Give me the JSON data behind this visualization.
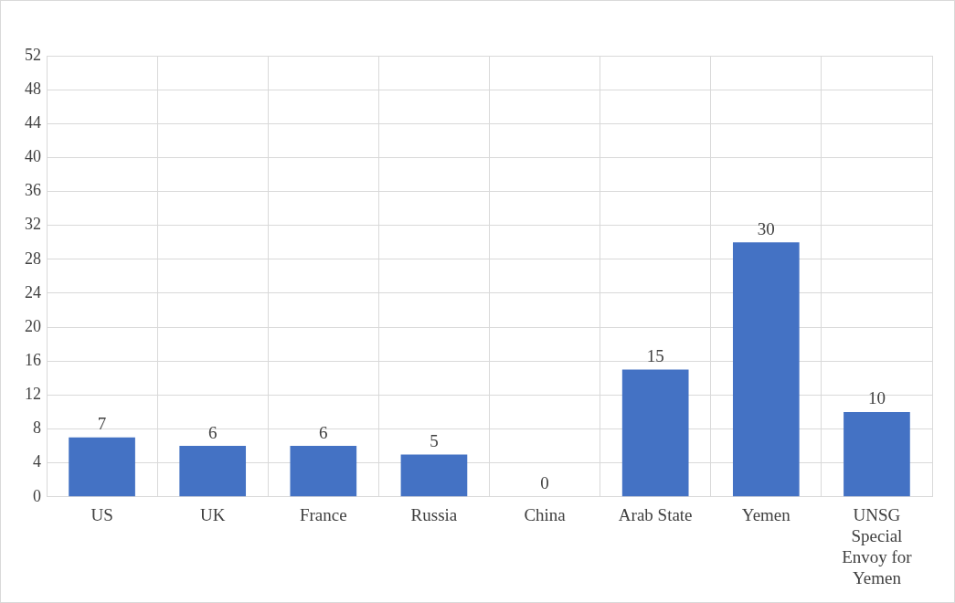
{
  "chart_data": {
    "type": "bar",
    "categories": [
      "US",
      "UK",
      "France",
      "Russia",
      "China",
      "Arab State",
      "Yemen",
      "UNSG Special Envoy for Yemen"
    ],
    "values": [
      7,
      6,
      6,
      5,
      0,
      15,
      30,
      10
    ],
    "color": "#4472c4",
    "ylim": [
      0,
      52
    ],
    "yticks": [
      0,
      4,
      8,
      12,
      16,
      20,
      24,
      28,
      32,
      36,
      40,
      44,
      48,
      52
    ],
    "grid": true,
    "data_labels": true
  }
}
